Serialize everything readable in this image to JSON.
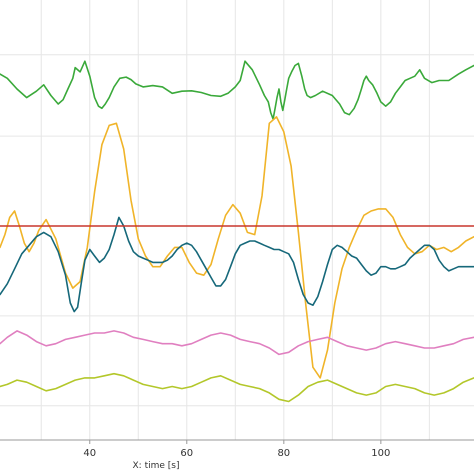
{
  "chart_data": {
    "type": "line",
    "xlabel": "X: time [s]",
    "ylabel": "",
    "title": "",
    "xlim": [
      21.5,
      119.2
    ],
    "ylim": [
      0,
      100
    ],
    "grid": true,
    "x_ticks": [
      40,
      60,
      80,
      100
    ],
    "x_tick_labels": [
      "40",
      "60",
      "80",
      "100"
    ],
    "series": [
      {
        "color": "#3aa93a",
        "x": [
          21.5,
          23,
          25,
          27,
          29,
          30.5,
          32,
          33.5,
          34.5,
          35.5,
          36.5,
          37,
          38,
          39,
          40,
          41,
          41.8,
          42.5,
          43.2,
          44,
          45,
          46.2,
          47.5,
          48.5,
          49.5,
          51,
          53,
          55,
          57,
          59,
          61,
          63,
          65,
          67,
          68.5,
          70,
          71,
          72,
          73.5,
          75,
          76,
          76.8,
          77.3,
          77.8,
          78.2,
          78.6,
          79,
          79.4,
          79.8,
          80.2,
          80.6,
          81,
          81.6,
          82.3,
          83,
          83.7,
          84.3,
          84.8,
          85.5,
          86.5,
          88,
          90,
          91.5,
          92.5,
          93.5,
          94.5,
          95.3,
          96,
          96.5,
          97,
          97.5,
          98.3,
          99.2,
          100,
          101,
          102,
          103,
          104,
          105,
          106,
          107,
          108,
          109,
          110.5,
          112,
          114,
          116,
          117.5,
          119.2
        ],
        "y": [
          85.5,
          84.5,
          82,
          80,
          81.5,
          83,
          80.5,
          78.5,
          79.5,
          82,
          84.5,
          87,
          86,
          88.5,
          85,
          80,
          78,
          77.5,
          78.5,
          80,
          82.5,
          84.5,
          84.8,
          84.2,
          83.2,
          82.5,
          82.8,
          82.5,
          81,
          81.5,
          81.6,
          81.2,
          80.5,
          80.3,
          81,
          82.5,
          84,
          88.5,
          86.5,
          83,
          80.5,
          79,
          76.5,
          75,
          77.5,
          80,
          82,
          79,
          77,
          79.5,
          82,
          84.5,
          86,
          87.5,
          88,
          85,
          82,
          80.5,
          80,
          80.5,
          81.5,
          80.5,
          78.5,
          76.5,
          76,
          77.5,
          79.5,
          82,
          84,
          85,
          84,
          83,
          81,
          79,
          78,
          79,
          81,
          82.5,
          84,
          84.5,
          85,
          86.5,
          84.5,
          83.5,
          84,
          84,
          85.5,
          86.5,
          87.5
        ]
      },
      {
        "color": "#f0b429",
        "x": [
          21.5,
          22.5,
          23.5,
          24.5,
          25.5,
          26.5,
          27.5,
          28.5,
          29.5,
          31,
          33,
          35,
          36.5,
          38,
          39.5,
          41,
          42.5,
          44,
          45.5,
          47,
          48.5,
          50,
          51.5,
          53,
          54.5,
          56,
          57.5,
          59,
          60.5,
          62,
          63.5,
          65,
          66.5,
          68,
          69.5,
          71,
          72.5,
          74,
          75.5,
          77,
          78.5,
          80,
          81.5,
          83,
          84.5,
          86,
          87.5,
          89,
          90.5,
          92,
          93.5,
          95,
          96.5,
          98,
          99.5,
          101,
          102.5,
          104,
          105.5,
          107,
          108.5,
          110,
          111.5,
          113,
          114.5,
          116,
          117.5,
          119.2
        ],
        "y": [
          45,
          48,
          52,
          53.5,
          50,
          46,
          44,
          46,
          49,
          51.5,
          47,
          39,
          35.5,
          37,
          45,
          58,
          69,
          73.5,
          74,
          68,
          56,
          47,
          43,
          40.5,
          40.5,
          43,
          45,
          45,
          41.5,
          39,
          38.5,
          41,
          47,
          52.5,
          55,
          53,
          48.5,
          48,
          57,
          74,
          75.5,
          72,
          64,
          48.5,
          32,
          17,
          14.5,
          21,
          32,
          40,
          45,
          49,
          52.5,
          53.5,
          54,
          54,
          52,
          48,
          45,
          43.5,
          44,
          45.5,
          44.5,
          45,
          44,
          45,
          46.5,
          47.5
        ]
      },
      {
        "color": "#16687a",
        "x": [
          21.5,
          23,
          24.5,
          26,
          27.5,
          29,
          30.5,
          32,
          33.5,
          35,
          36,
          36.8,
          37.5,
          38.3,
          39,
          40,
          41,
          42,
          43,
          44,
          45,
          46,
          47,
          48,
          49,
          50,
          51,
          52,
          53,
          54,
          55,
          56,
          57,
          58,
          59,
          60,
          61,
          62,
          63,
          64,
          65,
          66,
          67,
          68,
          69,
          70,
          71,
          72,
          73,
          74,
          75,
          76,
          77,
          78,
          79,
          80,
          81,
          82,
          83,
          84,
          85,
          86,
          87,
          88,
          89,
          90,
          91,
          92,
          93,
          94,
          95,
          96,
          97,
          98,
          99,
          100,
          101,
          102,
          103,
          104,
          105,
          106,
          107,
          108,
          109,
          110,
          111,
          112,
          113,
          114,
          115,
          116,
          117,
          118,
          119.2
        ],
        "y": [
          34,
          36.5,
          40,
          43.5,
          45.5,
          47.5,
          48.5,
          47.5,
          44,
          38.5,
          32,
          30,
          31,
          37,
          42,
          44.5,
          43,
          41.5,
          42.5,
          44.5,
          48,
          52,
          50,
          46.5,
          44,
          43,
          42.5,
          42,
          41.5,
          41.5,
          41.5,
          42,
          43,
          44.5,
          45.5,
          46,
          45.5,
          44,
          42,
          40,
          38,
          36,
          36,
          37.5,
          40.5,
          43.5,
          45.5,
          46,
          46.5,
          46.5,
          46,
          45.5,
          45,
          44.5,
          44.5,
          44,
          43.5,
          41.5,
          37.5,
          34,
          32,
          31.5,
          33.5,
          37,
          41,
          44.5,
          45.5,
          45,
          44,
          43,
          42.5,
          41,
          39.5,
          38.5,
          39,
          40.5,
          40.5,
          40,
          40,
          40.5,
          41,
          42.5,
          43.5,
          44.5,
          45.5,
          45.5,
          44.5,
          42,
          40.5,
          39.5,
          40,
          40.5,
          40.5,
          40.5,
          40.5
        ]
      },
      {
        "color": "#e07fc0",
        "x": [
          21.5,
          23,
          25,
          27,
          29,
          31,
          33,
          35,
          37,
          39,
          41,
          43,
          45,
          47,
          49,
          51,
          53,
          55,
          57,
          59,
          61,
          63,
          65,
          67,
          69,
          71,
          73,
          75,
          77,
          79,
          81,
          83,
          85,
          87,
          89,
          91,
          93,
          95,
          97,
          99,
          101,
          103,
          105,
          107,
          109,
          111,
          113,
          115,
          117,
          119.2
        ],
        "y": [
          22.5,
          24,
          25.5,
          24.5,
          23,
          22,
          22.5,
          23.5,
          24,
          24.5,
          25,
          25,
          25.5,
          25,
          24,
          23.5,
          23,
          22.5,
          22.5,
          22,
          22.5,
          23.5,
          24.5,
          25,
          24.5,
          23.5,
          23,
          22.5,
          21.5,
          20,
          20.5,
          22,
          23,
          23.5,
          24,
          23,
          22,
          21.5,
          21,
          21.5,
          22.5,
          23,
          22.5,
          22,
          21.5,
          21.5,
          22,
          22.5,
          23.5,
          24
        ]
      },
      {
        "color": "#b3c72a",
        "x": [
          21.5,
          23,
          25,
          27,
          29,
          31,
          33,
          35,
          37,
          39,
          41,
          43,
          45,
          47,
          49,
          51,
          53,
          55,
          57,
          59,
          61,
          63,
          65,
          67,
          69,
          71,
          73,
          75,
          77,
          79,
          81,
          83,
          85,
          87,
          89,
          91,
          93,
          95,
          97,
          99,
          101,
          103,
          105,
          107,
          109,
          111,
          113,
          115,
          117,
          119.2
        ],
        "y": [
          12.5,
          13,
          14,
          13.5,
          12.5,
          11.5,
          12,
          13,
          14,
          14.5,
          14.5,
          15,
          15.5,
          15,
          14,
          13,
          12.5,
          12,
          12.5,
          12,
          12.5,
          13.5,
          14.5,
          15,
          14,
          13,
          12.5,
          12,
          11,
          9.5,
          9,
          10.5,
          12.5,
          13.5,
          14,
          13,
          12,
          11,
          10.5,
          11,
          12.5,
          13,
          12.5,
          12,
          11,
          10.5,
          11,
          12,
          13.5,
          14.5
        ]
      },
      {
        "color": "#c8372d",
        "x": [
          21.5,
          119.2
        ],
        "y": [
          50,
          50
        ]
      }
    ]
  }
}
